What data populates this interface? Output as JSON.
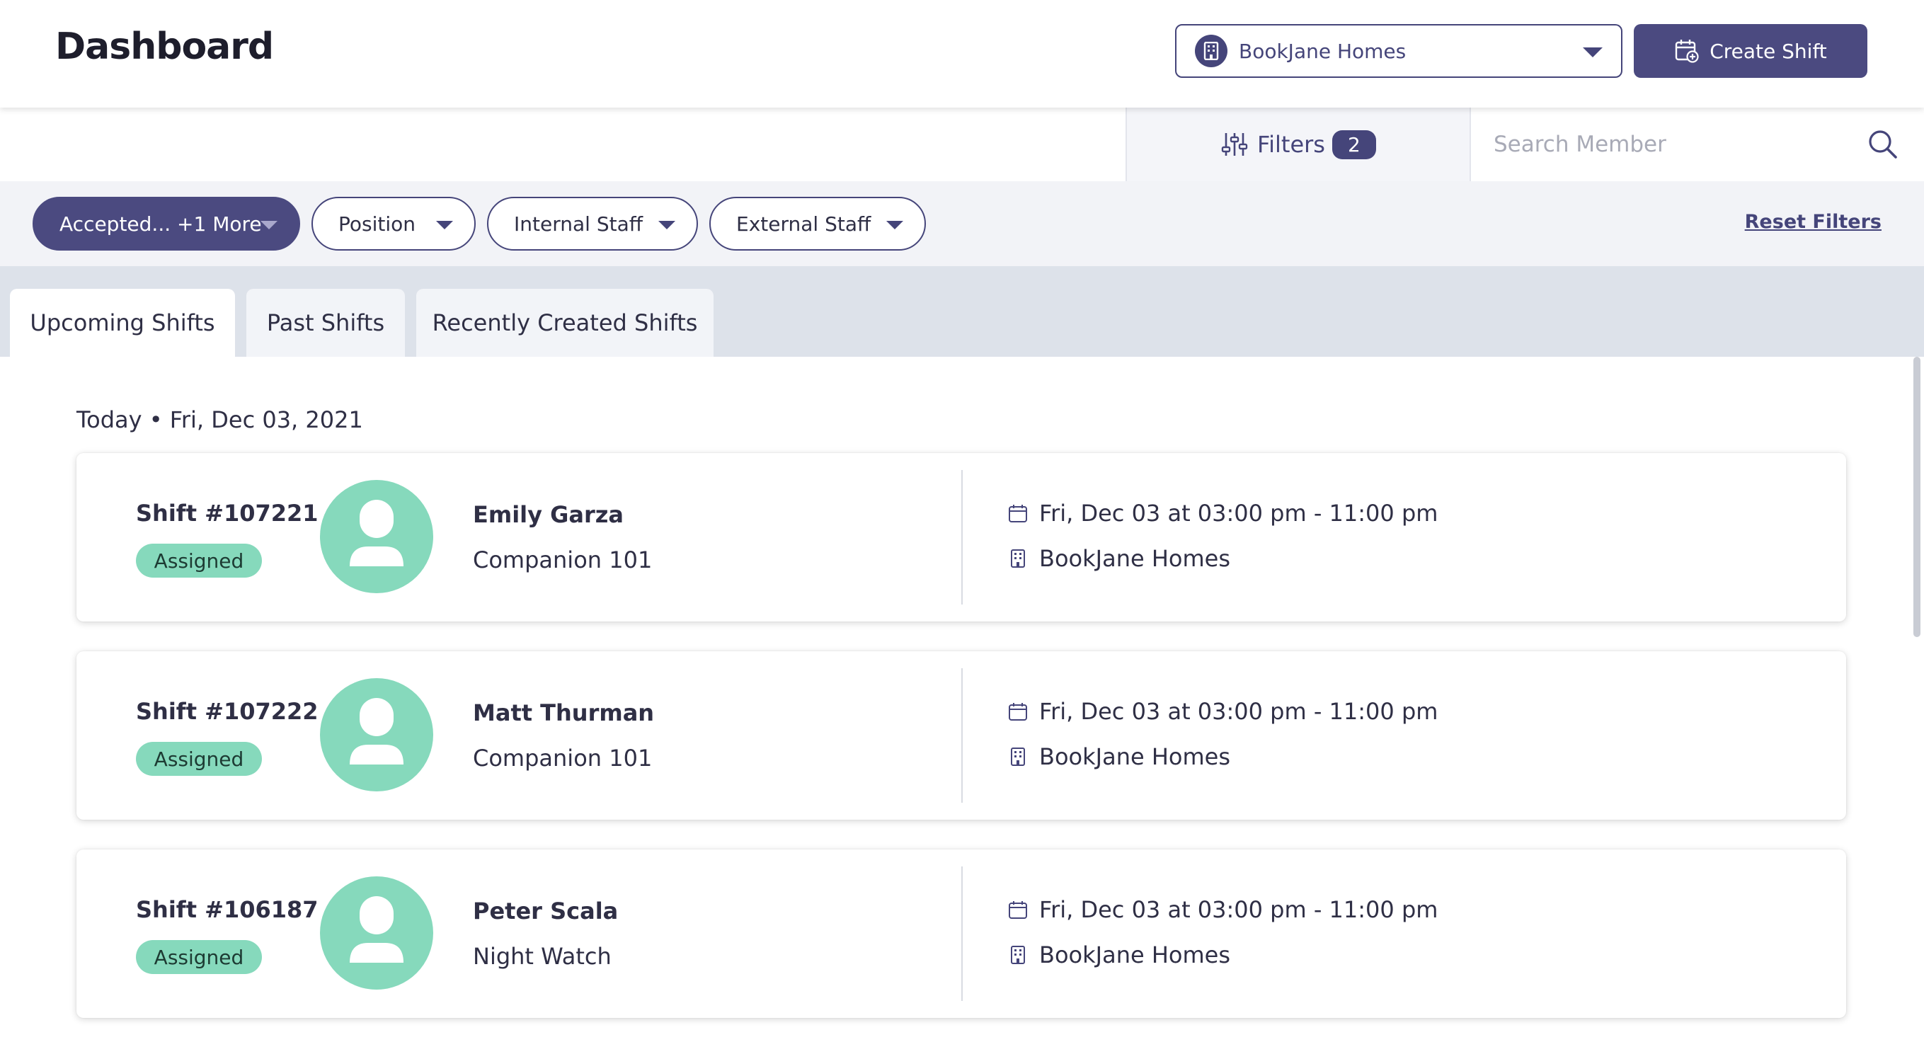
{
  "header": {
    "title": "Dashboard",
    "facility_selector": {
      "value": "BookJane Homes"
    },
    "create_shift_label": "Create Shift"
  },
  "search_bar": {
    "filters_label": "Filters",
    "filters_count": "2",
    "search_placeholder": "Search Member"
  },
  "filter_chips": [
    {
      "label": "Accepted... +1 More",
      "active": true
    },
    {
      "label": "Position",
      "active": false
    },
    {
      "label": "Internal Staff",
      "active": false
    },
    {
      "label": "External Staff",
      "active": false
    }
  ],
  "reset_filters_label": "Reset Filters",
  "tabs": [
    {
      "label": "Upcoming Shifts",
      "active": true
    },
    {
      "label": "Past Shifts",
      "active": false
    },
    {
      "label": "Recently Created Shifts",
      "active": false
    }
  ],
  "date_header": "Today • Fri, Dec 03, 2021",
  "shifts": [
    {
      "shift_number": "Shift #107221",
      "status": "Assigned",
      "member_name": "Emily Garza",
      "position": "Companion 101",
      "datetime": "Fri, Dec 03 at 03:00 pm - 11:00 pm",
      "location": "BookJane Homes"
    },
    {
      "shift_number": "Shift #107222",
      "status": "Assigned",
      "member_name": "Matt Thurman",
      "position": "Companion 101",
      "datetime": "Fri, Dec 03 at 03:00 pm - 11:00 pm",
      "location": "BookJane Homes"
    },
    {
      "shift_number": "Shift #106187",
      "status": "Assigned",
      "member_name": "Peter Scala",
      "position": "Night Watch",
      "datetime": "Fri, Dec 03 at 03:00 pm - 11:00 pm",
      "location": "BookJane Homes"
    }
  ],
  "colors": {
    "brand": "#4b4a80",
    "status_assigned": "#86d9bc",
    "tab_bar_bg": "#dde2ea",
    "chip_row_bg": "#f2f3f7"
  },
  "icons": {
    "facility": "building-icon",
    "create": "calendar-plus-icon",
    "filters": "sliders-icon",
    "search": "search-icon",
    "date": "calendar-icon",
    "location": "building-icon",
    "avatar": "user-icon"
  }
}
